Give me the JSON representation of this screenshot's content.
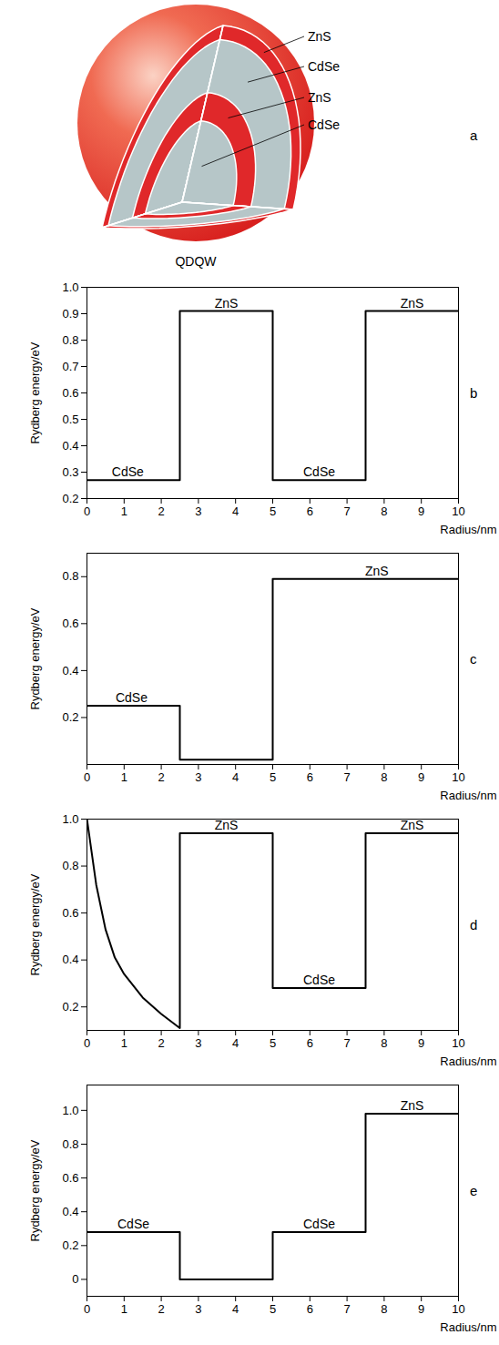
{
  "diagram": {
    "panel_label": "a",
    "title": "QDQW",
    "layers": [
      "ZnS",
      "CdSe",
      "ZnS",
      "CdSe"
    ]
  },
  "chart_data": [
    {
      "type": "line",
      "panel_label": "b",
      "x_label": "Radius/nm",
      "y_label": "Rydberg energy/eV",
      "color": "#000000",
      "x": [
        0,
        2.5,
        2.5,
        5,
        5,
        7.5,
        7.5,
        10
      ],
      "values": [
        0.27,
        0.27,
        0.91,
        0.91,
        0.27,
        0.27,
        0.91,
        0.91
      ],
      "xlim": [
        0,
        10
      ],
      "xticks": [
        0,
        1,
        2,
        3,
        4,
        5,
        6,
        7,
        8,
        9,
        10
      ],
      "ylim": [
        0.2,
        1.0
      ],
      "yticks": [
        0.2,
        0.3,
        0.4,
        0.5,
        0.6,
        0.7,
        0.8,
        0.9,
        {
          "value": 1,
          "label": "1.0"
        }
      ],
      "annotations": [
        {
          "text": "CdSe",
          "x": 1.1,
          "y": 0.27
        },
        {
          "text": "ZnS",
          "x": 3.75,
          "y": 0.91
        },
        {
          "text": "CdSe",
          "x": 6.25,
          "y": 0.27
        },
        {
          "text": "ZnS",
          "x": 8.75,
          "y": 0.91
        }
      ]
    },
    {
      "type": "line",
      "panel_label": "c",
      "x_label": "Radius/nm",
      "y_label": "Rydberg energy/eV",
      "color": "#000000",
      "x": [
        0,
        2.5,
        2.5,
        5,
        5,
        10
      ],
      "values": [
        0.25,
        0.25,
        0.02,
        0.02,
        0.79,
        0.79
      ],
      "xlim": [
        0,
        10
      ],
      "xticks": [
        0,
        1,
        2,
        3,
        4,
        5,
        6,
        7,
        8,
        9,
        10
      ],
      "ylim": [
        0,
        0.9
      ],
      "yticks": [
        0.2,
        0.4,
        0.6,
        0.8
      ],
      "annotations": [
        {
          "text": "CdSe",
          "x": 1.2,
          "y": 0.25
        },
        {
          "text": "ZnS",
          "x": 7.8,
          "y": 0.79
        }
      ]
    },
    {
      "type": "line",
      "panel_label": "d",
      "x_label": "Radius/nm",
      "y_label": "Rydberg energy/eV",
      "color": "#000000",
      "x": [
        0,
        0.25,
        0.5,
        0.75,
        1,
        1.5,
        2,
        2.5,
        2.5,
        5,
        5,
        7.5,
        7.5,
        10
      ],
      "values": [
        1.0,
        0.72,
        0.53,
        0.41,
        0.34,
        0.24,
        0.17,
        0.11,
        0.94,
        0.94,
        0.28,
        0.28,
        0.94,
        0.94
      ],
      "xlim": [
        0,
        10
      ],
      "xticks": [
        0,
        1,
        2,
        3,
        4,
        5,
        6,
        7,
        8,
        9,
        10
      ],
      "ylim": [
        0.1,
        1.0
      ],
      "yticks": [
        0.2,
        0.4,
        0.6,
        0.8,
        {
          "value": 1,
          "label": "1.0"
        }
      ],
      "annotations": [
        {
          "text": "ZnS",
          "x": 3.75,
          "y": 0.94
        },
        {
          "text": "CdSe",
          "x": 6.25,
          "y": 0.28
        },
        {
          "text": "ZnS",
          "x": 8.75,
          "y": 0.94
        }
      ]
    },
    {
      "type": "line",
      "panel_label": "e",
      "x_label": "Radius/nm",
      "y_label": "Rydberg energy/eV",
      "color": "#000000",
      "x": [
        0,
        2.5,
        2.5,
        5,
        5,
        7.5,
        7.5,
        10
      ],
      "values": [
        0.28,
        0.28,
        0.0,
        0.0,
        0.28,
        0.28,
        0.98,
        0.98
      ],
      "xlim": [
        0,
        10
      ],
      "xticks": [
        0,
        1,
        2,
        3,
        4,
        5,
        6,
        7,
        8,
        9,
        10
      ],
      "ylim": [
        -0.1,
        1.15
      ],
      "yticks": [
        0,
        0.2,
        0.4,
        0.6,
        0.8,
        {
          "value": 1,
          "label": "1.0"
        }
      ],
      "annotations": [
        {
          "text": "CdSe",
          "x": 1.25,
          "y": 0.28
        },
        {
          "text": "CdSe",
          "x": 6.25,
          "y": 0.28
        },
        {
          "text": "ZnS",
          "x": 8.75,
          "y": 0.98
        }
      ]
    }
  ]
}
